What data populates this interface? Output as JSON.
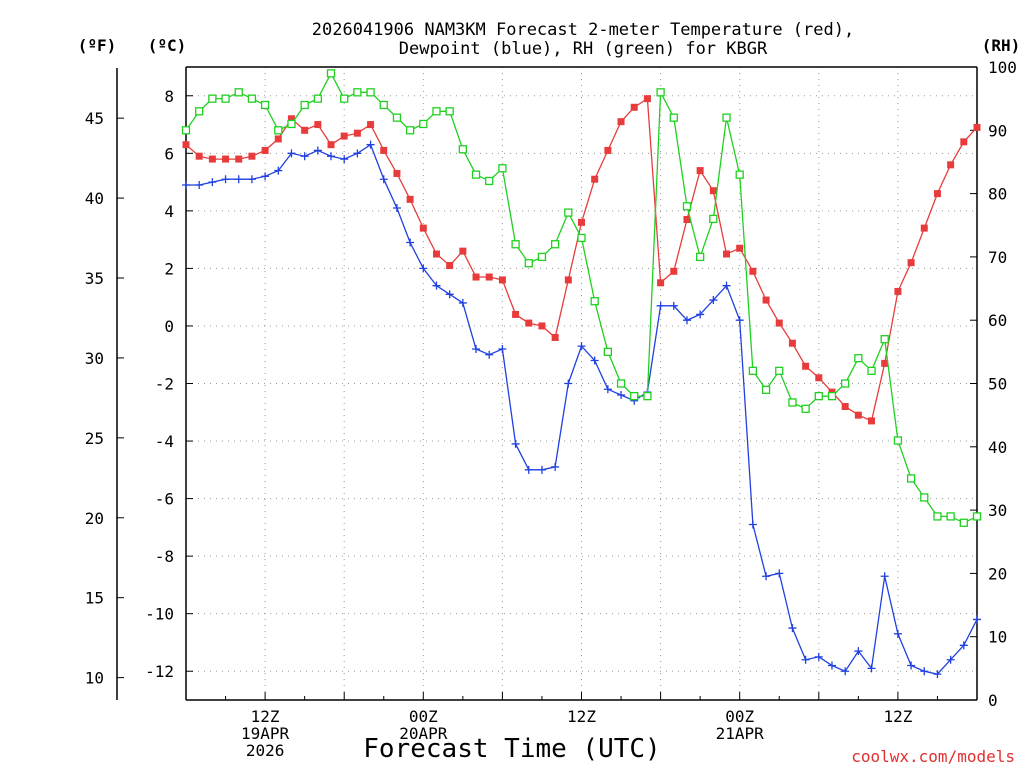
{
  "chart_data": {
    "type": "line",
    "title_line1": "2026041906 NAM3KM Forecast 2-meter Temperature (red),",
    "title_line2": "Dewpoint (blue), RH (green) for KBGR",
    "xlabel": "Forecast Time (UTC)",
    "credit": "coolwx.com/models",
    "units": {
      "fahrenheit": "(ºF)",
      "celsius": "(ºC)",
      "rh": "(RH)"
    },
    "colors": {
      "temperature": "#e83c3c",
      "dewpoint": "#2040e0",
      "rh": "#20d020",
      "grid": "#9a9a9a"
    },
    "x_range_hours": [
      0,
      60
    ],
    "x_ticks": [
      {
        "hour": 6,
        "lines": [
          "12Z",
          "19APR",
          "2026"
        ]
      },
      {
        "hour": 18,
        "lines": [
          "00Z",
          "20APR"
        ]
      },
      {
        "hour": 30,
        "lines": [
          "12Z"
        ]
      },
      {
        "hour": 42,
        "lines": [
          "00Z",
          "21APR"
        ]
      },
      {
        "hour": 54,
        "lines": [
          "12Z"
        ]
      }
    ],
    "celsius_axis": {
      "range": [
        -13.0,
        9.0
      ],
      "ticks": [
        8,
        6,
        4,
        2,
        0,
        -2,
        -4,
        -6,
        -8,
        -10,
        -12
      ]
    },
    "fahrenheit_ticks": [
      45,
      40,
      35,
      30,
      25,
      20,
      15,
      10
    ],
    "rh_axis": {
      "range": [
        0,
        100
      ],
      "ticks": [
        100,
        90,
        80,
        70,
        60,
        50,
        40,
        30,
        20,
        10,
        0
      ]
    },
    "series": [
      {
        "name": "Temperature",
        "unit": "C",
        "marker": "filled-square",
        "values": [
          6.3,
          5.9,
          5.8,
          5.8,
          5.8,
          5.9,
          6.1,
          6.5,
          7.2,
          6.8,
          7.0,
          6.3,
          6.6,
          6.7,
          7.0,
          6.1,
          5.3,
          4.4,
          3.4,
          2.5,
          2.1,
          2.6,
          1.7,
          1.7,
          1.6,
          0.4,
          0.1,
          0.0,
          -0.4,
          1.6,
          3.6,
          5.1,
          6.1,
          7.1,
          7.6,
          7.9,
          1.5,
          1.9,
          3.7,
          5.4,
          4.7,
          2.5,
          2.7,
          1.9,
          0.9,
          0.1,
          -0.6,
          -1.4,
          -1.8,
          -2.3,
          -2.8,
          -3.1,
          -3.3,
          -1.3,
          1.2,
          2.2,
          3.4,
          4.6,
          5.6,
          6.4,
          6.9
        ]
      },
      {
        "name": "Dewpoint",
        "unit": "C",
        "marker": "plus",
        "values": [
          4.9,
          4.9,
          5.0,
          5.1,
          5.1,
          5.1,
          5.2,
          5.4,
          6.0,
          5.9,
          6.1,
          5.9,
          5.8,
          6.0,
          6.3,
          5.1,
          4.1,
          2.9,
          2.0,
          1.4,
          1.1,
          0.8,
          -0.8,
          -1.0,
          -0.8,
          -4.1,
          -5.0,
          -5.0,
          -4.9,
          -2.0,
          -0.7,
          -1.2,
          -2.2,
          -2.4,
          -2.6,
          -2.3,
          0.7,
          0.7,
          0.2,
          0.4,
          0.9,
          1.4,
          0.2,
          -6.9,
          -8.7,
          -8.6,
          -10.5,
          -11.6,
          -11.5,
          -11.8,
          -12.0,
          -11.3,
          -11.9,
          -8.7,
          -10.7,
          -11.8,
          -12.0,
          -12.1,
          -11.6,
          -11.1,
          -10.2
        ]
      },
      {
        "name": "RH",
        "unit": "%",
        "marker": "open-square",
        "values": [
          90,
          93,
          95,
          95,
          96,
          95,
          94,
          90,
          91,
          94,
          95,
          99,
          95,
          96,
          96,
          94,
          92,
          90,
          91,
          93,
          93,
          87,
          83,
          82,
          84,
          72,
          69,
          70,
          72,
          77,
          73,
          63,
          55,
          50,
          48,
          48,
          96,
          92,
          78,
          70,
          76,
          92,
          83,
          52,
          49,
          52,
          47,
          46,
          48,
          48,
          50,
          54,
          52,
          57,
          41,
          35,
          32,
          29,
          29,
          28,
          29
        ]
      }
    ]
  }
}
